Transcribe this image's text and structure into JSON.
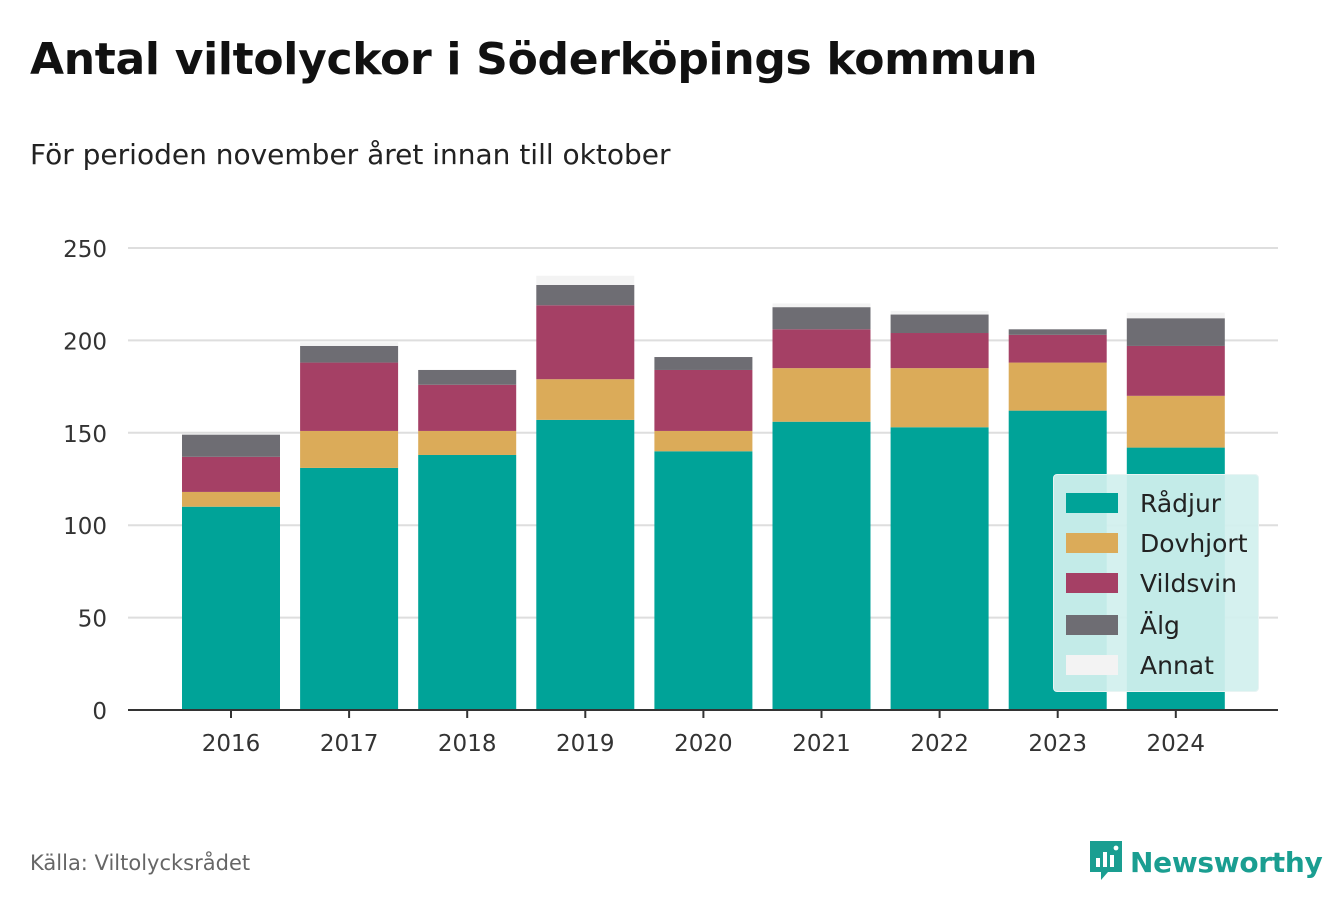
{
  "header": {
    "title": "Antal viltolyckor i Söderköpings kommun",
    "subtitle": "För perioden november året innan till oktober"
  },
  "footer": {
    "source": "Källa: Viltolycksrådet",
    "brand": "Newsworthy",
    "brand_icon": "bar-chart-speech-bubble-icon",
    "brand_color": "#1a9e91"
  },
  "chart_data": {
    "type": "bar",
    "stacked": true,
    "categories": [
      "2016",
      "2017",
      "2018",
      "2019",
      "2020",
      "2021",
      "2022",
      "2023",
      "2024"
    ],
    "series": [
      {
        "name": "Rådjur",
        "color": "#00a398",
        "values": [
          110,
          131,
          138,
          157,
          140,
          156,
          153,
          162,
          142
        ]
      },
      {
        "name": "Dovhjort",
        "color": "#dbab59",
        "values": [
          8,
          20,
          13,
          22,
          11,
          29,
          32,
          26,
          28
        ]
      },
      {
        "name": "Vildsvin",
        "color": "#a54065",
        "values": [
          19,
          37,
          25,
          40,
          33,
          21,
          19,
          15,
          27
        ]
      },
      {
        "name": "Älg",
        "color": "#6e6d73",
        "values": [
          12,
          9,
          8,
          11,
          7,
          12,
          10,
          3,
          15
        ]
      },
      {
        "name": "Annat",
        "color": "#f3f3f3",
        "values": [
          0,
          2,
          0,
          5,
          0,
          2,
          2,
          0,
          3
        ]
      }
    ],
    "yticks": [
      0,
      50,
      100,
      150,
      200,
      250
    ],
    "ylim": [
      0,
      250
    ],
    "grid": true,
    "legend_position": "bottom-right"
  }
}
